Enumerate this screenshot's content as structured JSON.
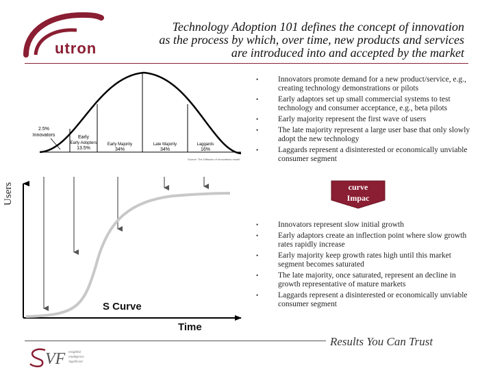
{
  "header": {
    "title_lines": [
      "Technology Adoption 101 defines the concept of innovation",
      "as the process by which, over time, new products and services",
      "are introduced into and accepted by the market"
    ],
    "logo_text": "utron",
    "accent_color": "#8a1e32"
  },
  "bell_curve": {
    "segments": [
      {
        "name": "Innovators",
        "share": "2.5%"
      },
      {
        "name": "Early Adopters",
        "share": "13.5%"
      },
      {
        "name": "Early Majority",
        "share": "34%"
      },
      {
        "name": "Late Majority",
        "share": "34%"
      },
      {
        "name": "Laggards",
        "share": "16%"
      }
    ],
    "source_note": "Source: The Diffusion of Innovations model"
  },
  "adoption_bullets": [
    "Innovators promote demand for a new product/service, e.g., creating technology demonstrations or pilots",
    "Early adaptors set up small commercial systems to test technology and consumer acceptance, e.g., beta pilots",
    "Early majority represent the first wave of users",
    "The late majority represent a large user base that only slowly adopt the new technology",
    "Laggards represent a disinterested or economically unviable consumer segment"
  ],
  "impact_arrow": {
    "line1": "curve",
    "line2": "Impac",
    "color": "#8a1e32"
  },
  "s_curve": {
    "y_label": "Users",
    "title": "S Curve",
    "x_label": "Time"
  },
  "growth_bullets": [
    "Innovators represent slow initial growth",
    "Early adaptors create an inflection point where slow growth rates rapidly increase",
    "Early majority keep growth rates high until this market segment becomes saturated",
    "The late majority, once saturated, represent an decline in growth representative of mature markets",
    "Laggards represent a disinterested or economically unviable consumer segment"
  ],
  "footer": {
    "tagline": "Results You Can Trust",
    "logo_text": "VF",
    "logo_small_lines": [
      "Insightful",
      "Intelligence",
      "Significant"
    ]
  }
}
